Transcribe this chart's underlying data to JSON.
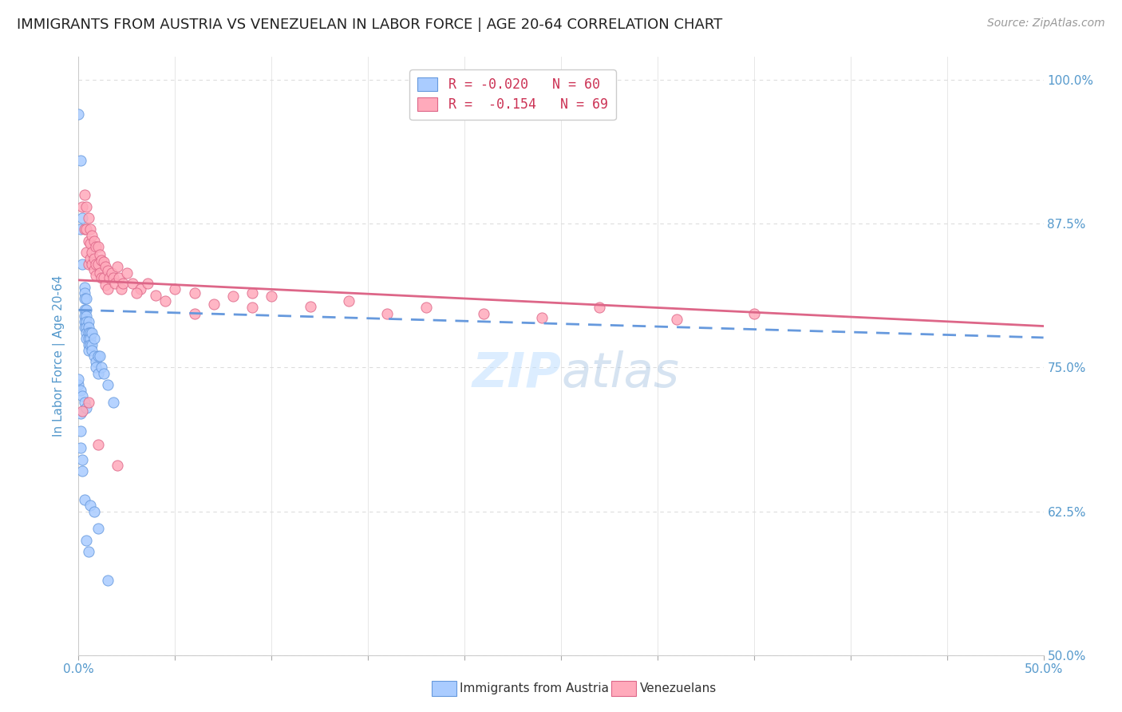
{
  "title": "IMMIGRANTS FROM AUSTRIA VS VENEZUELAN IN LABOR FORCE | AGE 20-64 CORRELATION CHART",
  "source": "Source: ZipAtlas.com",
  "ylabel": "In Labor Force | Age 20-64",
  "ytick_labels": [
    "50.0%",
    "62.5%",
    "75.0%",
    "87.5%",
    "100.0%"
  ],
  "ytick_values": [
    0.5,
    0.625,
    0.75,
    0.875,
    1.0
  ],
  "legend_austria": "R = -0.020   N = 60",
  "legend_venezuela": "R =  -0.154   N = 69",
  "legend_bottom_austria": "Immigrants from Austria",
  "legend_bottom_venezuela": "Venezuelans",
  "austria_color": "#aaccff",
  "venezuela_color": "#ffaabb",
  "trendline_austria_color": "#6699dd",
  "trendline_venezuela_color": "#dd6688",
  "watermark": "ZIPatlas",
  "austria_x": [
    0.0,
    0.001,
    0.001,
    0.002,
    0.002,
    0.003,
    0.003,
    0.003,
    0.003,
    0.003,
    0.003,
    0.003,
    0.004,
    0.004,
    0.004,
    0.004,
    0.004,
    0.004,
    0.004,
    0.005,
    0.005,
    0.005,
    0.005,
    0.005,
    0.005,
    0.006,
    0.006,
    0.006,
    0.007,
    0.007,
    0.007,
    0.008,
    0.008,
    0.009,
    0.009,
    0.01,
    0.01,
    0.011,
    0.012,
    0.013,
    0.015,
    0.018,
    0.0,
    0.001,
    0.001,
    0.001,
    0.002,
    0.002,
    0.003,
    0.004,
    0.005,
    0.006,
    0.008,
    0.01,
    0.015,
    0.0,
    0.001,
    0.002,
    0.003,
    0.004
  ],
  "austria_y": [
    0.97,
    0.93,
    0.87,
    0.88,
    0.84,
    0.82,
    0.815,
    0.81,
    0.8,
    0.795,
    0.79,
    0.785,
    0.81,
    0.8,
    0.795,
    0.79,
    0.785,
    0.78,
    0.775,
    0.79,
    0.785,
    0.78,
    0.775,
    0.77,
    0.765,
    0.78,
    0.775,
    0.77,
    0.78,
    0.77,
    0.765,
    0.775,
    0.76,
    0.755,
    0.75,
    0.76,
    0.745,
    0.76,
    0.75,
    0.745,
    0.735,
    0.72,
    0.735,
    0.71,
    0.695,
    0.68,
    0.67,
    0.66,
    0.635,
    0.6,
    0.59,
    0.63,
    0.625,
    0.61,
    0.565,
    0.74,
    0.73,
    0.725,
    0.72,
    0.715
  ],
  "venezuela_x": [
    0.002,
    0.003,
    0.003,
    0.004,
    0.004,
    0.004,
    0.005,
    0.005,
    0.005,
    0.006,
    0.006,
    0.006,
    0.007,
    0.007,
    0.007,
    0.008,
    0.008,
    0.008,
    0.009,
    0.009,
    0.009,
    0.01,
    0.01,
    0.011,
    0.011,
    0.012,
    0.012,
    0.013,
    0.013,
    0.014,
    0.014,
    0.015,
    0.015,
    0.016,
    0.017,
    0.018,
    0.019,
    0.02,
    0.021,
    0.022,
    0.023,
    0.025,
    0.028,
    0.032,
    0.036,
    0.04,
    0.045,
    0.05,
    0.06,
    0.07,
    0.08,
    0.09,
    0.1,
    0.12,
    0.14,
    0.16,
    0.18,
    0.21,
    0.24,
    0.27,
    0.31,
    0.35,
    0.002,
    0.005,
    0.01,
    0.02,
    0.03,
    0.06,
    0.09
  ],
  "venezuela_y": [
    0.89,
    0.9,
    0.87,
    0.89,
    0.87,
    0.85,
    0.88,
    0.86,
    0.84,
    0.87,
    0.858,
    0.845,
    0.865,
    0.85,
    0.84,
    0.86,
    0.845,
    0.835,
    0.855,
    0.84,
    0.83,
    0.855,
    0.84,
    0.848,
    0.832,
    0.843,
    0.828,
    0.842,
    0.828,
    0.838,
    0.822,
    0.834,
    0.818,
    0.828,
    0.832,
    0.828,
    0.823,
    0.838,
    0.828,
    0.818,
    0.823,
    0.832,
    0.823,
    0.818,
    0.823,
    0.813,
    0.808,
    0.818,
    0.815,
    0.805,
    0.812,
    0.802,
    0.812,
    0.803,
    0.808,
    0.797,
    0.802,
    0.797,
    0.793,
    0.802,
    0.792,
    0.797,
    0.712,
    0.72,
    0.683,
    0.665,
    0.815,
    0.797,
    0.815
  ],
  "xlim": [
    0.0,
    0.5
  ],
  "ylim": [
    0.5,
    1.02
  ],
  "background_color": "#ffffff",
  "grid_color": "#dddddd",
  "title_fontsize": 13,
  "source_fontsize": 10,
  "axis_label_color": "#5599cc",
  "tick_color": "#5599cc",
  "austria_R": -0.02,
  "austria_intercept": 0.8,
  "austria_slope": -0.048,
  "venezuela_R": -0.154,
  "venezuela_intercept": 0.826,
  "venezuela_slope": -0.08
}
